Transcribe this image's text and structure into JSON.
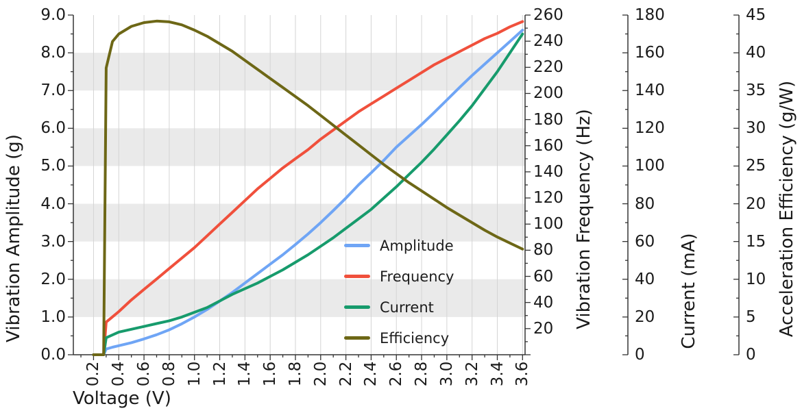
{
  "chart_data": {
    "type": "line",
    "title": "",
    "xlabel": "Voltage (V)",
    "xlim": [
      0.04,
      3.62
    ],
    "x_ticks": [
      "0.2",
      "0.4",
      "0.6",
      "0.8",
      "1.0",
      "1.2",
      "1.4",
      "1.6",
      "1.8",
      "2.0",
      "2.2",
      "2.4",
      "2.6",
      "2.8",
      "3.0",
      "3.2",
      "3.4",
      "3.6"
    ],
    "x": [
      0.2,
      0.28,
      0.3,
      0.35,
      0.4,
      0.5,
      0.6,
      0.7,
      0.8,
      0.9,
      1.0,
      1.1,
      1.2,
      1.3,
      1.4,
      1.5,
      1.6,
      1.7,
      1.8,
      1.9,
      2.0,
      2.1,
      2.2,
      2.3,
      2.4,
      2.5,
      2.6,
      2.7,
      2.8,
      2.9,
      3.0,
      3.1,
      3.2,
      3.3,
      3.4,
      3.5,
      3.6
    ],
    "axes": {
      "amplitude": {
        "label": "Vibration Amplitude (g)",
        "lim": [
          0,
          9
        ],
        "tick_labels": [
          "9.0",
          "8.0",
          "7.0",
          "6.0",
          "5.0",
          "4.0",
          "3.0",
          "2.0",
          "1.0",
          "0.0"
        ]
      },
      "frequency": {
        "label": "Vibration Frequency (Hz)",
        "lim": [
          0,
          260
        ],
        "tick_labels": [
          "260",
          "240",
          "220",
          "200",
          "180",
          "160",
          "140",
          "120",
          "100",
          "80",
          "60",
          "40",
          "20"
        ]
      },
      "current": {
        "label": "Current (mA)",
        "lim": [
          0,
          180
        ],
        "tick_labels": [
          "180",
          "160",
          "140",
          "120",
          "100",
          "80",
          "60",
          "40",
          "20",
          "0"
        ]
      },
      "efficiency": {
        "label": "Acceleration Efficiency (g/W)",
        "lim": [
          0,
          45
        ],
        "tick_labels": [
          "45",
          "40",
          "35",
          "30",
          "25",
          "20",
          "15",
          "10",
          "5",
          "0"
        ]
      }
    },
    "series": [
      {
        "name": "Amplitude",
        "axis": "amplitude",
        "color": "#6fa5f5",
        "y": [
          0,
          0,
          0.15,
          0.2,
          0.24,
          0.32,
          0.42,
          0.53,
          0.66,
          0.82,
          1.0,
          1.2,
          1.42,
          1.65,
          1.9,
          2.15,
          2.4,
          2.65,
          2.92,
          3.2,
          3.5,
          3.82,
          4.15,
          4.5,
          4.82,
          5.15,
          5.5,
          5.8,
          6.1,
          6.42,
          6.75,
          7.08,
          7.4,
          7.7,
          8.0,
          8.3,
          8.6
        ]
      },
      {
        "name": "Frequency",
        "axis": "frequency",
        "color": "#f0503c",
        "y": [
          0,
          0,
          25,
          29,
          33,
          42,
          50,
          58,
          66,
          74,
          82,
          91,
          100,
          109,
          118,
          127,
          135,
          143,
          150,
          157,
          165,
          172,
          179,
          186,
          192,
          198,
          204,
          210,
          216,
          222,
          227,
          232,
          237,
          242,
          246,
          251,
          255
        ]
      },
      {
        "name": "Current",
        "axis": "current",
        "color": "#179b6c",
        "y": [
          0,
          0,
          9,
          10.5,
          12,
          13.5,
          15,
          16.5,
          18,
          20,
          22.5,
          25,
          28.5,
          32,
          35,
          38,
          41.5,
          45,
          49,
          53,
          57.5,
          62,
          67,
          72,
          77,
          83,
          89,
          95.5,
          102,
          109,
          116.5,
          124,
          132,
          141,
          150,
          160,
          170
        ]
      },
      {
        "name": "Efficiency",
        "axis": "efficiency",
        "color": "#6d6716",
        "y": [
          0,
          0,
          38,
          41.5,
          42.5,
          43.5,
          44,
          44.2,
          44.1,
          43.7,
          43,
          42.2,
          41.2,
          40.2,
          39,
          37.8,
          36.6,
          35.4,
          34.2,
          33,
          31.7,
          30.4,
          29.1,
          27.8,
          26.5,
          25.2,
          24,
          22.8,
          21.7,
          20.6,
          19.5,
          18.5,
          17.5,
          16.5,
          15.6,
          14.8,
          14
        ]
      }
    ],
    "legend": [
      "Amplitude",
      "Frequency",
      "Current",
      "Efficiency"
    ],
    "legend_position": "inside-lower-right",
    "grid": true,
    "stripe_bands": [
      [
        1,
        2
      ],
      [
        3,
        4
      ],
      [
        5,
        6
      ],
      [
        7,
        8
      ]
    ],
    "colors": {
      "stripe": "#eaeaea",
      "grid": "#d4d4d4",
      "axis": "#333333",
      "text": "#1a1a1a"
    }
  }
}
